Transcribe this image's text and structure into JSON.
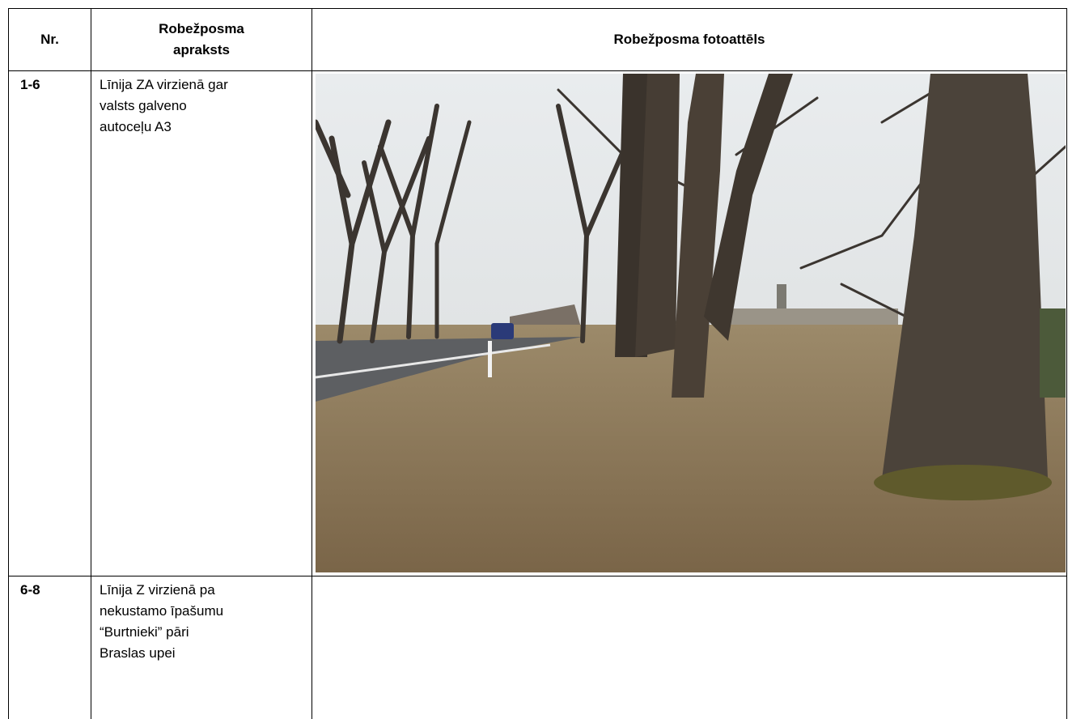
{
  "table": {
    "header": [
      "Nr.",
      "Robežposma apraksts",
      "Robežposma fotoattēls"
    ],
    "rows": [
      [
        "1-6",
        "Līnija ZA virzienā gar valsts galveno autoceļu A3"
      ],
      [
        "6-8",
        "Līnija Z virzienā pa nekustamo īpašumu “Burtnieki” pāri Braslas upei"
      ]
    ]
  }
}
